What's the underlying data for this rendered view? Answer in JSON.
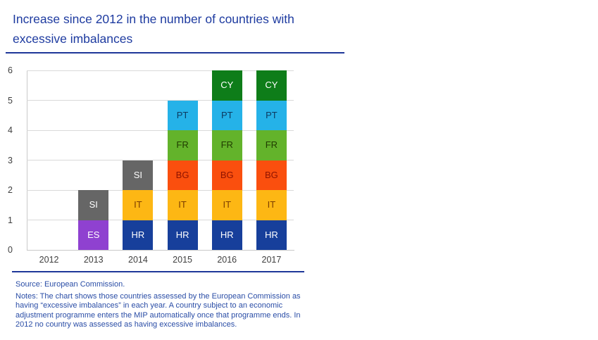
{
  "header": {
    "line1": "Increase since 2012 in the number of countries with",
    "line2": "excessive imbalances"
  },
  "accent_color": "#1e3799",
  "chart_data": {
    "type": "bar",
    "stacked": true,
    "title": "Increase since 2012 in the number of countries with excessive imbalances",
    "xlabel": "",
    "ylabel": "",
    "ylim": [
      0,
      6
    ],
    "yticks": [
      0,
      1,
      2,
      3,
      4,
      5,
      6
    ],
    "grid": true,
    "legend": "none (labels drawn inside segments)",
    "categories": [
      "2012",
      "2013",
      "2014",
      "2015",
      "2016",
      "2017"
    ],
    "totals": [
      0,
      2,
      3,
      5,
      6,
      6
    ],
    "stacks": [
      {
        "category": "2012",
        "segments": []
      },
      {
        "category": "2013",
        "segments": [
          {
            "country": "ES",
            "value": 1,
            "color": "#8f41d0",
            "label_color": "#ffffff"
          },
          {
            "country": "SI",
            "value": 1,
            "color": "#666666",
            "label_color": "#ffffff"
          }
        ]
      },
      {
        "category": "2014",
        "segments": [
          {
            "country": "HR",
            "value": 1,
            "color": "#173f9b",
            "label_color": "#ffffff"
          },
          {
            "country": "IT",
            "value": 1,
            "color": "#fdb714",
            "label_color": "#7c3e00"
          },
          {
            "country": "SI",
            "value": 1,
            "color": "#666666",
            "label_color": "#ffffff"
          }
        ]
      },
      {
        "category": "2015",
        "segments": [
          {
            "country": "HR",
            "value": 1,
            "color": "#173f9b",
            "label_color": "#ffffff"
          },
          {
            "country": "IT",
            "value": 1,
            "color": "#fdb714",
            "label_color": "#7c3e00"
          },
          {
            "country": "BG",
            "value": 1,
            "color": "#fa4f0e",
            "label_color": "#8e1300"
          },
          {
            "country": "FR",
            "value": 1,
            "color": "#63b32b",
            "label_color": "#203c00"
          },
          {
            "country": "PT",
            "value": 1,
            "color": "#25b2e8",
            "label_color": "#0d3a60"
          }
        ]
      },
      {
        "category": "2016",
        "segments": [
          {
            "country": "HR",
            "value": 1,
            "color": "#173f9b",
            "label_color": "#ffffff"
          },
          {
            "country": "IT",
            "value": 1,
            "color": "#fdb714",
            "label_color": "#7c3e00"
          },
          {
            "country": "BG",
            "value": 1,
            "color": "#fa4f0e",
            "label_color": "#8e1300"
          },
          {
            "country": "FR",
            "value": 1,
            "color": "#63b32b",
            "label_color": "#203c00"
          },
          {
            "country": "PT",
            "value": 1,
            "color": "#25b2e8",
            "label_color": "#0d3a60"
          },
          {
            "country": "CY",
            "value": 1,
            "color": "#0e7d19",
            "label_color": "#ffffff"
          }
        ]
      },
      {
        "category": "2017",
        "segments": [
          {
            "country": "HR",
            "value": 1,
            "color": "#173f9b",
            "label_color": "#ffffff"
          },
          {
            "country": "IT",
            "value": 1,
            "color": "#fdb714",
            "label_color": "#7c3e00"
          },
          {
            "country": "BG",
            "value": 1,
            "color": "#fa4f0e",
            "label_color": "#8e1300"
          },
          {
            "country": "FR",
            "value": 1,
            "color": "#63b32b",
            "label_color": "#203c00"
          },
          {
            "country": "PT",
            "value": 1,
            "color": "#25b2e8",
            "label_color": "#0d3a60"
          },
          {
            "country": "CY",
            "value": 1,
            "color": "#0e7d19",
            "label_color": "#ffffff"
          }
        ]
      }
    ]
  },
  "footer": {
    "source": "Source: European Commission.",
    "notes_lines": [
      "Notes: The chart shows those countries assessed by the European Commission as",
      "having “excessive imbalances” in each year. A country subject to an economic",
      "adjustment programme enters the MIP automatically once that programme ends. In",
      "2012 no country was assessed as having excessive imbalances."
    ]
  }
}
